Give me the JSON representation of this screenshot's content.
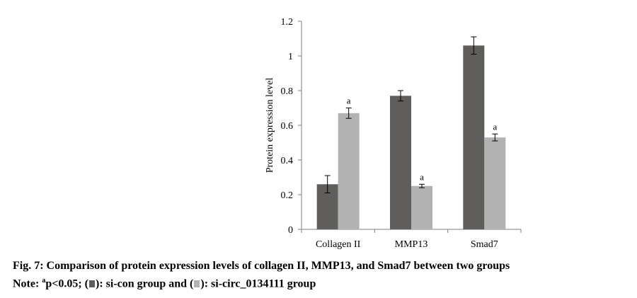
{
  "chart_data": {
    "type": "bar",
    "categories": [
      "Collagen II",
      "MMP13",
      "Smad7"
    ],
    "series": [
      {
        "name": "si-con",
        "values": [
          0.26,
          0.77,
          1.06
        ],
        "errors": [
          0.05,
          0.03,
          0.05
        ],
        "labels": [
          "",
          "",
          ""
        ],
        "color": "#5f5e5c"
      },
      {
        "name": "si-circ_0134111",
        "values": [
          0.67,
          0.25,
          0.53
        ],
        "errors": [
          0.03,
          0.01,
          0.02
        ],
        "labels": [
          "a",
          "a",
          "a"
        ],
        "color": "#b2b2b2"
      }
    ],
    "ylabel": "Protein expression level",
    "xlabel": "",
    "ylim": [
      0,
      1.2
    ],
    "yticks": [
      0,
      0.2,
      0.4,
      0.6,
      0.8,
      1,
      1.2
    ],
    "ytick_labels": [
      "0",
      "0.2",
      "0.4",
      "0.6",
      "0.8",
      "1",
      "1.2"
    ],
    "grid": false,
    "legend": "none"
  },
  "caption": {
    "title": "Fig. 7: Comparison of protein expression levels of collagen II, MMP13, and Smad7 between two groups",
    "note_prefix": "Note: ",
    "note_sup": "a",
    "note_p": "p<0.05; (",
    "note_mid": "): si-con group and (",
    "note_end": "): si-circ_0134111 group"
  }
}
